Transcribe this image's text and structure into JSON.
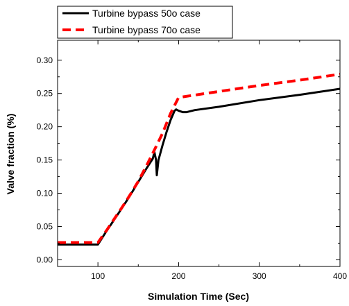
{
  "chart_data": {
    "type": "line",
    "xlabel": "Simulation Time (Sec)",
    "ylabel": "Valve fraction (%)",
    "xlim": [
      50,
      400
    ],
    "ylim": [
      -0.01,
      0.33
    ],
    "xticks": [
      100,
      200,
      300,
      400
    ],
    "xtick_labels": [
      "100",
      "200",
      "300",
      "400"
    ],
    "yticks": [
      0.0,
      0.05,
      0.1,
      0.15,
      0.2,
      0.25,
      0.3
    ],
    "ytick_labels": [
      "0.00",
      "0.05",
      "0.10",
      "0.15",
      "0.20",
      "0.25",
      "0.30"
    ],
    "legend_position": "top-left, above plot",
    "grid": false,
    "series": [
      {
        "name": "Turbine bypass 50o case",
        "color": "#000000",
        "style": "solid",
        "x": [
          50,
          100,
          110,
          120,
          130,
          140,
          150,
          160,
          168,
          170,
          172,
          173,
          175,
          180,
          185,
          190,
          195,
          197,
          200,
          205,
          210,
          220,
          250,
          300,
          350,
          400
        ],
        "y": [
          0.023,
          0.023,
          0.042,
          0.06,
          0.078,
          0.097,
          0.117,
          0.137,
          0.152,
          0.162,
          0.15,
          0.127,
          0.15,
          0.172,
          0.192,
          0.21,
          0.224,
          0.226,
          0.224,
          0.222,
          0.222,
          0.225,
          0.23,
          0.24,
          0.248,
          0.257
        ]
      },
      {
        "name": "Turbine bypass 70o case",
        "color": "#ff0000",
        "style": "dashed",
        "x": [
          50,
          100,
          110,
          120,
          130,
          140,
          150,
          160,
          170,
          180,
          190,
          200,
          250,
          300,
          350,
          400
        ],
        "y": [
          0.026,
          0.026,
          0.043,
          0.061,
          0.079,
          0.098,
          0.118,
          0.141,
          0.165,
          0.19,
          0.22,
          0.244,
          0.253,
          0.262,
          0.27,
          0.279
        ]
      }
    ]
  }
}
